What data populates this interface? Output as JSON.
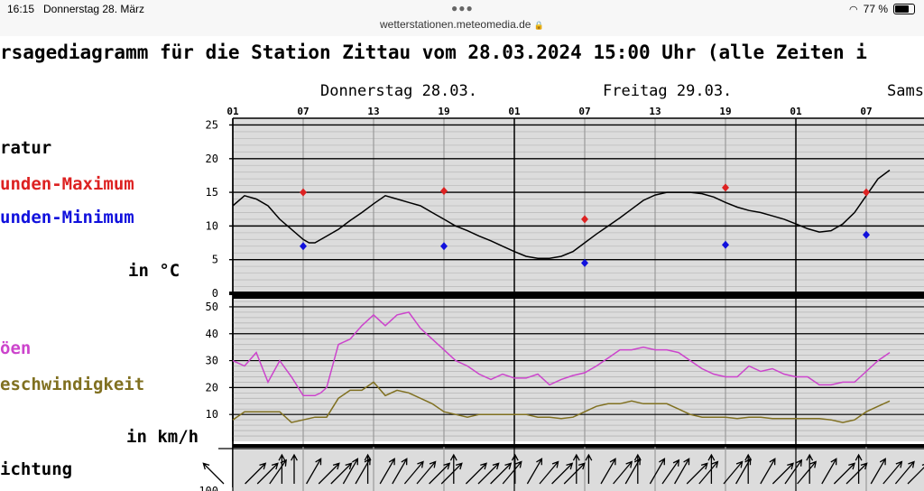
{
  "status_bar": {
    "time": "16:15",
    "date": "Donnerstag 28. März",
    "url": "wetterstationen.meteomedia.de",
    "battery": "77 %",
    "battery_level": 0.77
  },
  "chart_data": {
    "type": "line",
    "title": "rsagediagramm für die Station Zittau vom 28.03.2024 15:00 Uhr (alle Zeiten i",
    "day_labels": [
      "Donnerstag 28.03.",
      "Freitag 29.03.",
      "Sams"
    ],
    "hour_ticks": [
      "01",
      "07",
      "13",
      "19",
      "01",
      "07",
      "13",
      "19",
      "01",
      "07"
    ],
    "temperature_panel": {
      "labels": [
        "ratur",
        "unden-Maximum",
        "unden-Minimum"
      ],
      "unit_label": "in °C",
      "yticks": [
        "0",
        "5",
        "10",
        "15",
        "20",
        "25"
      ],
      "ylim": [
        0,
        26
      ],
      "colors": {
        "line": "#000000",
        "max": "#dd2222",
        "min": "#1111dd"
      },
      "series": [
        {
          "kind": "line",
          "x": [
            0,
            1,
            2,
            3,
            4,
            5,
            6,
            6.5,
            7,
            8,
            9,
            10,
            11,
            12,
            13,
            14,
            15,
            16,
            17,
            18,
            19,
            20,
            21,
            22,
            23,
            24,
            25,
            26,
            27,
            28,
            29,
            30,
            31,
            32,
            33,
            34,
            35,
            36,
            37,
            38,
            39,
            40,
            41,
            42,
            43,
            44,
            45,
            46,
            47,
            48,
            49,
            50,
            51,
            52,
            53,
            54,
            55,
            56
          ],
          "y": [
            13,
            14.5,
            14,
            13,
            11,
            9.5,
            8,
            7.5,
            7.5,
            8.5,
            9.5,
            10.8,
            12,
            13.3,
            14.5,
            14,
            13.5,
            13,
            12,
            11,
            10,
            9.3,
            8.5,
            7.8,
            7,
            6.2,
            5.5,
            5.2,
            5.2,
            5.5,
            6.2,
            7.5,
            8.8,
            10,
            11.2,
            12.5,
            13.8,
            14.6,
            15,
            15,
            15,
            14.8,
            14.3,
            13.5,
            12.8,
            12.3,
            12,
            11.5,
            11,
            10.3,
            9.6,
            9.1,
            9.3,
            10.3,
            12,
            14.5,
            17,
            18.3
          ]
        },
        {
          "kind": "max",
          "x": [
            6,
            18,
            30,
            42,
            54
          ],
          "y": [
            15,
            15.2,
            11,
            15.7,
            15
          ]
        },
        {
          "kind": "min",
          "x": [
            6,
            18,
            30,
            42,
            54
          ],
          "y": [
            7,
            7,
            4.5,
            7.2,
            8.7
          ]
        }
      ]
    },
    "wind_panel": {
      "labels": [
        "öen",
        "eschwindigkeit"
      ],
      "unit_label": "in km/h",
      "yticks": [
        "10",
        "20",
        "30",
        "40",
        "50"
      ],
      "ylim": [
        0,
        53
      ],
      "colors": {
        "gust": "#cc44cc",
        "speed": "#807020"
      },
      "series": [
        {
          "kind": "gust",
          "x": [
            0,
            1,
            2,
            3,
            3.5,
            4,
            5,
            6,
            7,
            7.5,
            8,
            9,
            10,
            11,
            12,
            13,
            14,
            15,
            16,
            17,
            18,
            19,
            20,
            21,
            22,
            23,
            24,
            25,
            26,
            27,
            28,
            29,
            30,
            31,
            32,
            33,
            34,
            35,
            36,
            37,
            38,
            39,
            40,
            41,
            42,
            43,
            44,
            45,
            46,
            47,
            48,
            49,
            50,
            51,
            52,
            53,
            54,
            55,
            56
          ],
          "y": [
            30,
            28,
            33,
            22,
            26,
            30,
            24,
            17,
            17,
            18,
            20,
            36,
            38,
            43,
            47,
            43,
            47,
            48,
            42,
            38,
            34,
            30,
            28,
            25,
            23,
            25,
            23.5,
            23.5,
            25,
            21,
            23,
            24.5,
            25.5,
            28,
            31,
            34,
            34,
            35,
            34,
            34,
            33,
            30,
            27,
            25,
            24,
            24,
            28,
            26,
            27,
            25,
            24,
            24,
            21,
            21,
            22,
            22,
            26,
            30,
            33
          ]
        },
        {
          "kind": "speed",
          "x": [
            0,
            1,
            2,
            3,
            4,
            5,
            6,
            7,
            8,
            9,
            10,
            11,
            12,
            13,
            14,
            15,
            16,
            17,
            18,
            19,
            20,
            21,
            22,
            23,
            24,
            25,
            26,
            27,
            28,
            29,
            30,
            31,
            32,
            33,
            34,
            35,
            36,
            37,
            38,
            39,
            40,
            41,
            42,
            43,
            44,
            45,
            46,
            47,
            48,
            49,
            50,
            51,
            52,
            53,
            54,
            55,
            56
          ],
          "y": [
            8,
            11,
            11,
            11,
            11,
            7,
            8,
            9,
            9,
            16,
            19,
            19,
            22,
            17,
            19,
            18,
            16,
            14,
            11,
            10,
            9,
            10,
            10,
            10,
            10,
            10,
            9,
            9,
            8.5,
            9,
            11,
            13,
            14,
            14,
            15,
            14,
            14,
            14,
            12,
            10,
            9,
            9,
            9,
            8.5,
            9,
            9,
            8.5,
            8.5,
            8.5,
            8.5,
            8.5,
            8,
            7,
            8,
            11,
            13,
            15
          ]
        }
      ]
    },
    "direction_panel": {
      "label": "ichtung",
      "ytick_partial": "100",
      "directions_deg": [
        -45,
        45,
        45,
        35,
        0,
        0,
        30,
        45,
        45,
        30,
        30,
        0,
        30,
        30,
        40,
        40,
        45,
        45,
        0,
        45,
        45,
        45,
        40,
        0,
        30,
        40,
        45,
        45,
        0,
        0,
        30,
        40,
        30,
        0,
        30,
        35,
        30,
        45,
        40,
        0,
        40,
        30,
        0,
        30,
        45,
        35,
        40,
        0,
        30,
        45,
        45,
        0,
        30,
        40,
        40,
        45
      ]
    }
  }
}
